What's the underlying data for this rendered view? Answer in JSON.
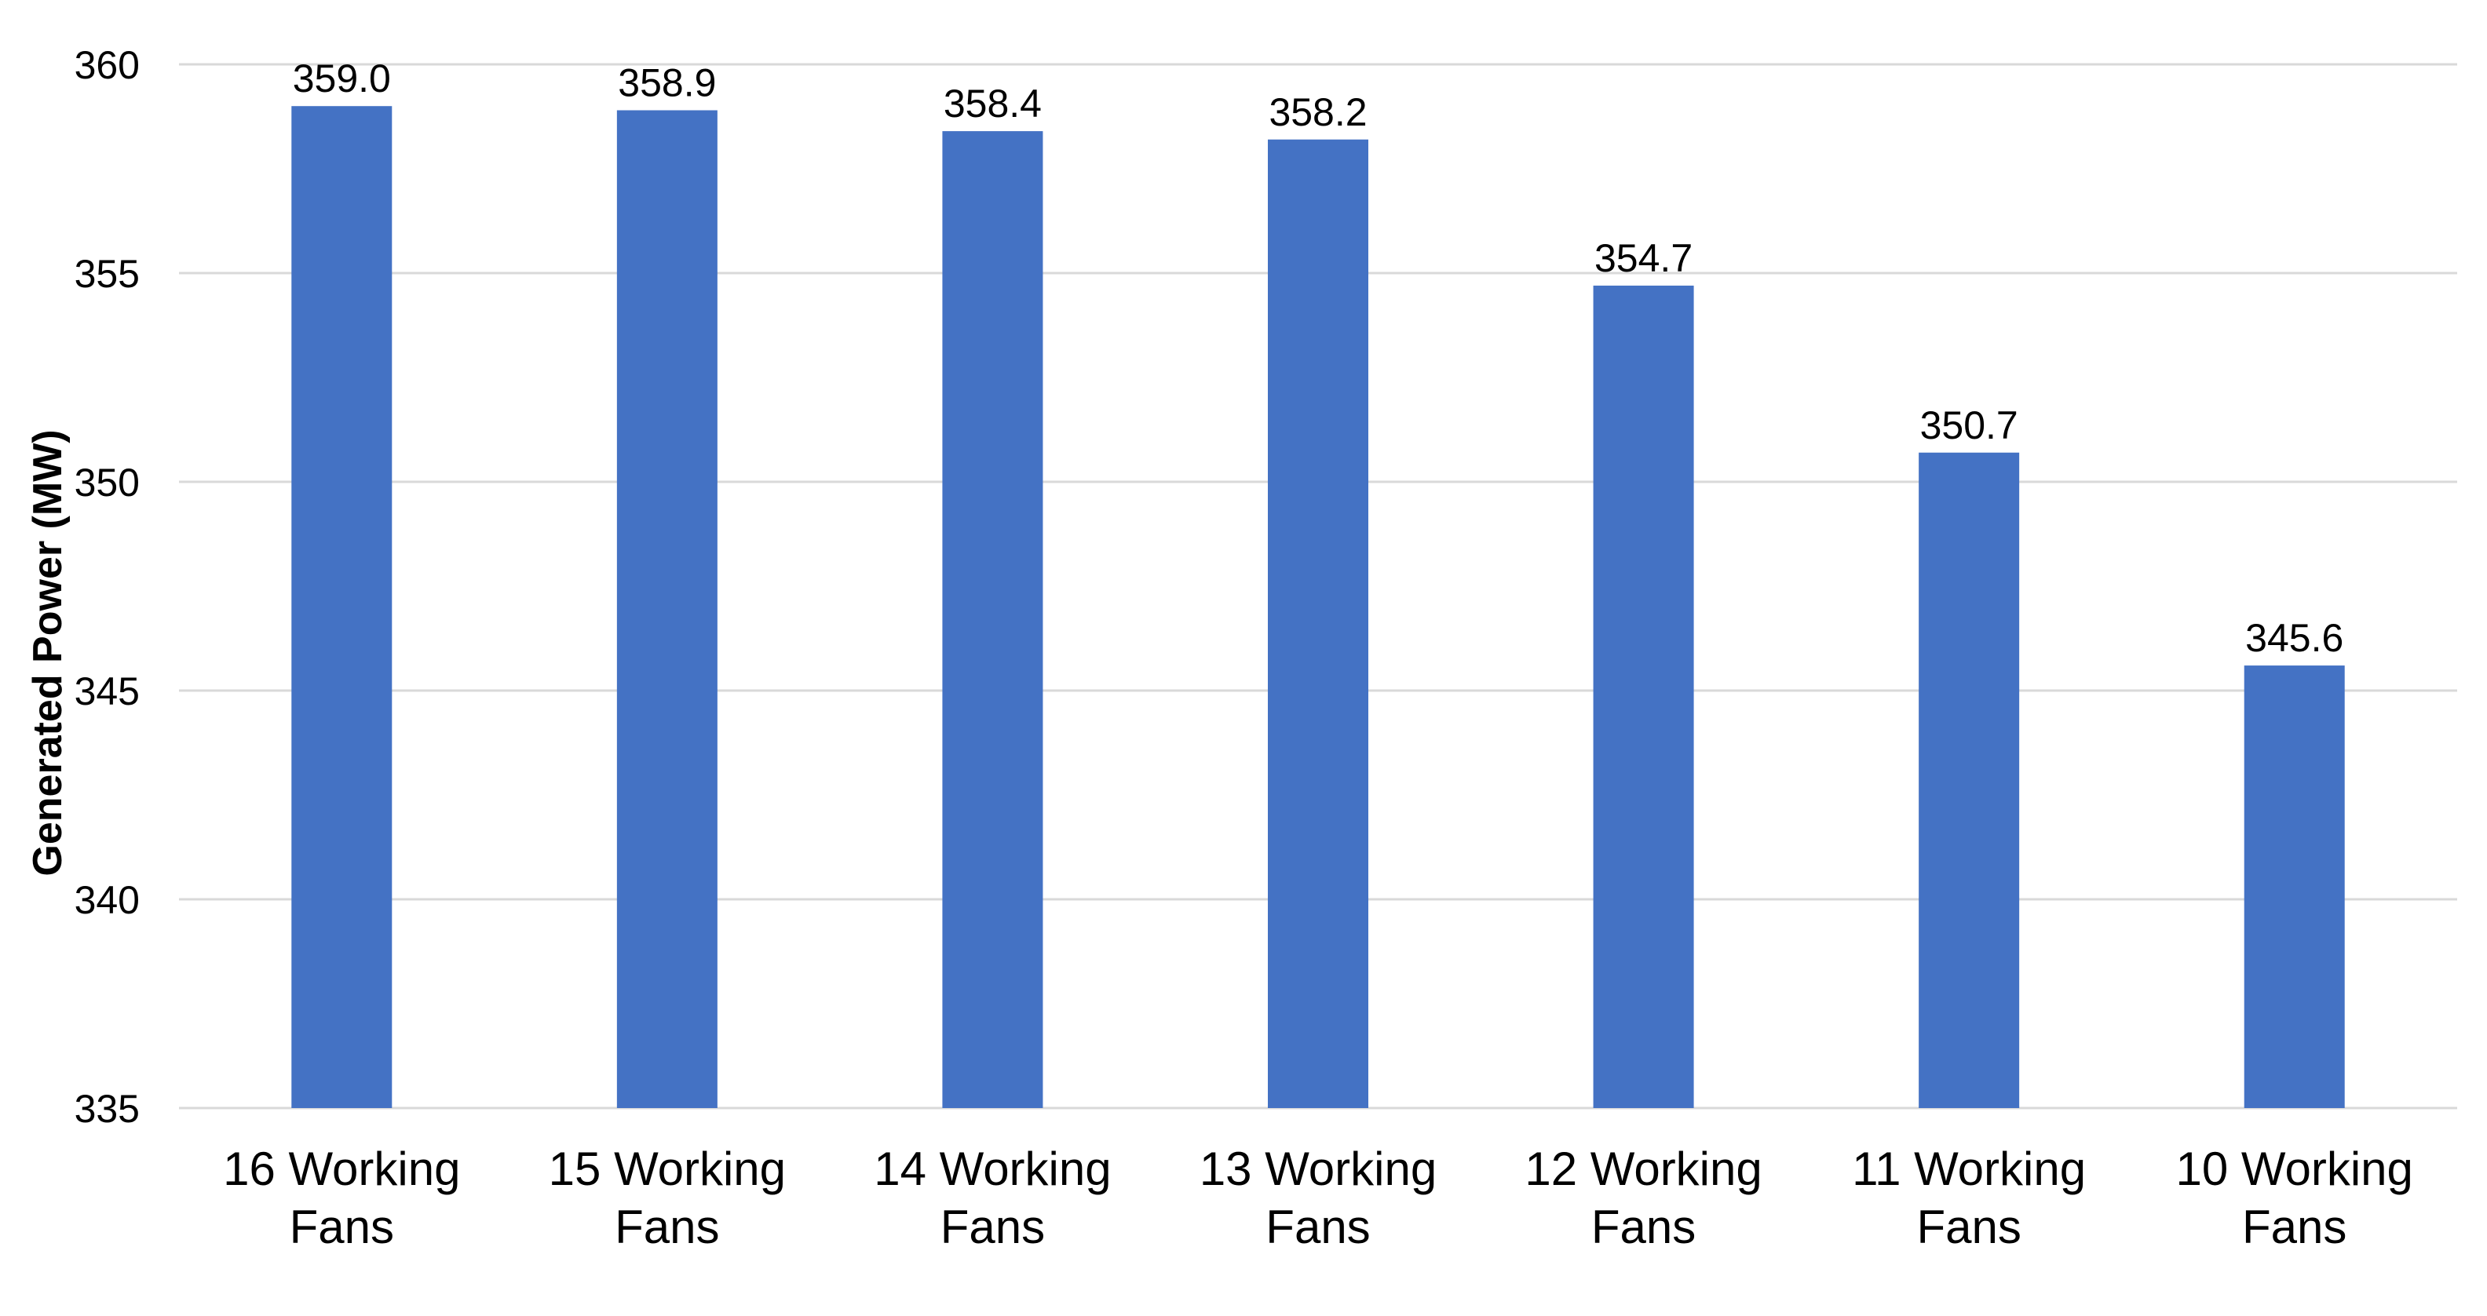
{
  "chart_data": {
    "type": "bar",
    "title": "",
    "xlabel": "",
    "ylabel": "Generated Power (MW)",
    "categories": [
      [
        "16 Working",
        "Fans"
      ],
      [
        "15 Working",
        "Fans"
      ],
      [
        "14 Working",
        "Fans"
      ],
      [
        "13 Working",
        "Fans"
      ],
      [
        "12 Working",
        "Fans"
      ],
      [
        "11 Working",
        "Fans"
      ],
      [
        "10 Working",
        "Fans"
      ]
    ],
    "values": [
      359.0,
      358.9,
      358.4,
      358.2,
      354.7,
      350.7,
      345.6
    ],
    "value_labels": [
      "359.0",
      "358.9",
      "358.4",
      "358.2",
      "354.7",
      "350.7",
      "345.6"
    ],
    "ylim": [
      335,
      360
    ],
    "yticks": [
      335,
      340,
      345,
      350,
      355,
      360
    ],
    "grid": true,
    "legend": "none",
    "bar_color": "#4472C4",
    "grid_color": "#D9D9D9"
  }
}
